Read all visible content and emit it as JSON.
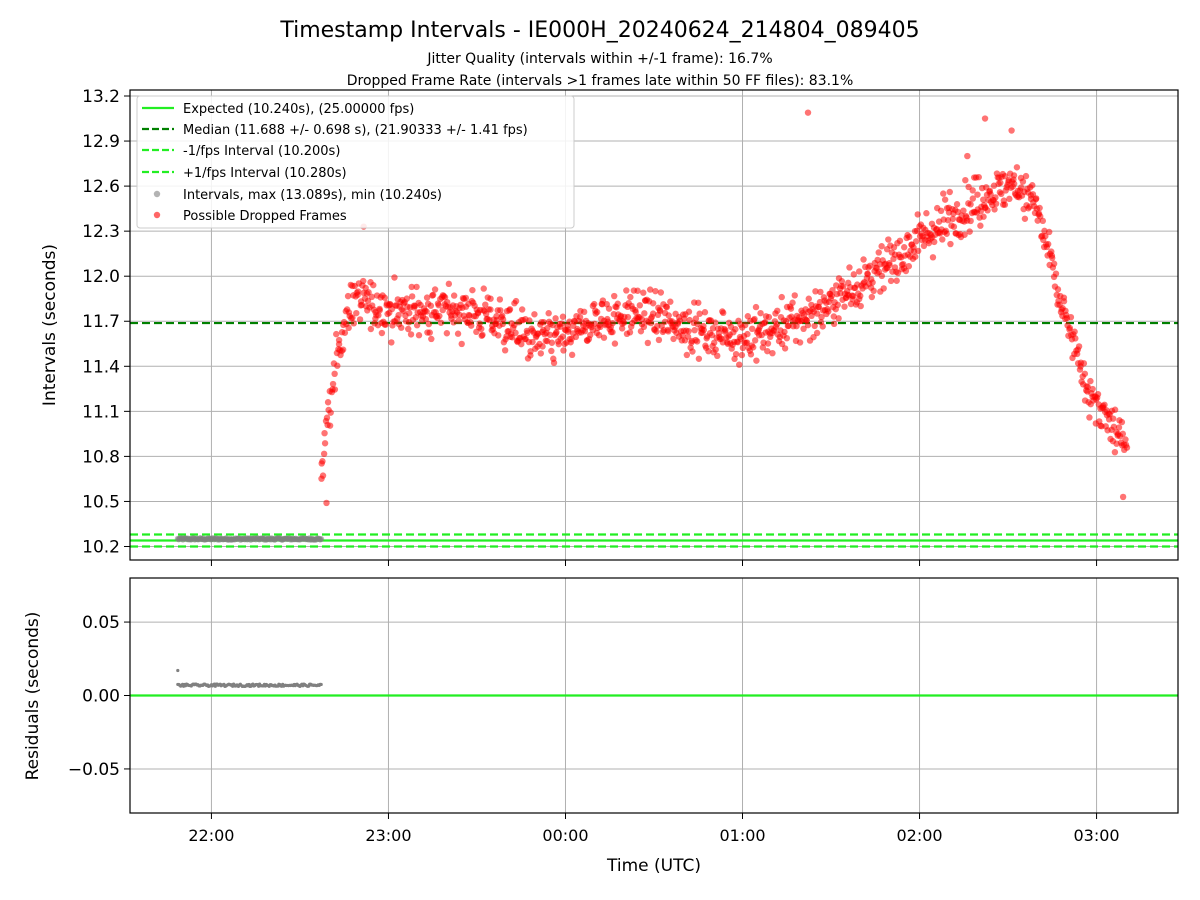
{
  "chart_data": {
    "type": "scatter",
    "title": "Timestamp Intervals - IE000H_20240624_214804_089405",
    "subtitle_lines": [
      "Jitter Quality (intervals within +/-1 frame): 16.7%",
      "Dropped Frame Rate (intervals >1 frames late within 50 FF files): 83.1%"
    ],
    "xlabel": "Time (UTC)",
    "x_ticks": [
      "22:00",
      "23:00",
      "00:00",
      "01:00",
      "02:00",
      "03:00"
    ],
    "x_tick_hours": [
      22,
      23,
      24,
      25,
      26,
      27
    ],
    "x_range_hours": [
      21.54,
      27.46
    ],
    "top": {
      "ylabel": "Intervals (seconds)",
      "ylim": [
        10.11,
        13.24
      ],
      "y_ticks": [
        "10.2",
        "10.5",
        "10.8",
        "11.1",
        "11.4",
        "11.7",
        "12.0",
        "12.3",
        "12.6",
        "12.9",
        "13.2"
      ],
      "y_tick_values": [
        10.2,
        10.5,
        10.8,
        11.1,
        11.4,
        11.7,
        12.0,
        12.3,
        12.6,
        12.9,
        13.2
      ],
      "grid": true,
      "legend_position": "top-left",
      "legend": [
        {
          "label": "Expected (10.240s), (25.00000 fps)",
          "style": "solid",
          "color": "#22ee22"
        },
        {
          "label": "Median (11.688 +/- 0.698 s), (21.90333 +/- 1.41 fps)",
          "style": "dashed",
          "color": "#008000"
        },
        {
          "label": "-1/fps Interval (10.200s)",
          "style": "dashed",
          "color": "#22ee22"
        },
        {
          "label": "+1/fps Interval (10.280s)",
          "style": "dashed",
          "color": "#22ee22"
        },
        {
          "label": "Intervals, max (13.089s), min (10.240s)",
          "style": "marker",
          "color": "#808080"
        },
        {
          "label": "Possible Dropped Frames",
          "style": "marker",
          "color": "#ff0000"
        }
      ],
      "reference_lines": {
        "expected": 10.24,
        "median": 11.688,
        "minus_fps": 10.2,
        "plus_fps": 10.28
      },
      "normal_intervals": {
        "x_range_hours": [
          21.81,
          22.62
        ],
        "value": 10.25,
        "count": 170
      },
      "dropped_profile": [
        [
          22.62,
          10.65
        ],
        [
          22.66,
          11.05
        ],
        [
          22.72,
          11.55
        ],
        [
          22.8,
          11.85
        ],
        [
          22.9,
          11.8
        ],
        [
          23.0,
          11.78
        ],
        [
          23.2,
          11.76
        ],
        [
          23.4,
          11.78
        ],
        [
          23.6,
          11.72
        ],
        [
          23.8,
          11.6
        ],
        [
          24.0,
          11.58
        ],
        [
          24.2,
          11.72
        ],
        [
          24.4,
          11.75
        ],
        [
          24.6,
          11.7
        ],
        [
          24.8,
          11.62
        ],
        [
          25.0,
          11.6
        ],
        [
          25.2,
          11.65
        ],
        [
          25.4,
          11.75
        ],
        [
          25.6,
          11.9
        ],
        [
          25.8,
          12.05
        ],
        [
          26.0,
          12.25
        ],
        [
          26.2,
          12.4
        ],
        [
          26.4,
          12.55
        ],
        [
          26.55,
          12.62
        ],
        [
          26.65,
          12.5
        ],
        [
          26.72,
          12.2
        ],
        [
          26.8,
          11.8
        ],
        [
          26.88,
          11.5
        ],
        [
          26.95,
          11.25
        ],
        [
          27.05,
          11.05
        ],
        [
          27.15,
          10.9
        ]
      ],
      "dropped_scatter": 0.2,
      "dropped_count": 1150,
      "dropped_outliers": [
        [
          25.37,
          13.089
        ],
        [
          26.37,
          13.05
        ],
        [
          26.52,
          12.97
        ],
        [
          26.27,
          12.8
        ],
        [
          27.15,
          10.53
        ],
        [
          22.65,
          10.49
        ],
        [
          22.86,
          12.33
        ]
      ]
    },
    "bottom": {
      "ylabel": "Residuals (seconds)",
      "ylim": [
        -0.08,
        0.08
      ],
      "y_ticks": [
        "0.05",
        "0.00",
        "−0.05"
      ],
      "y_tick_values": [
        0.05,
        0.0,
        -0.05
      ],
      "grid": true,
      "zero_line_color": "#22ee22",
      "residuals": {
        "x_range_hours": [
          21.81,
          22.62
        ],
        "value": 0.007,
        "outlier": [
          21.81,
          0.017
        ]
      }
    }
  }
}
